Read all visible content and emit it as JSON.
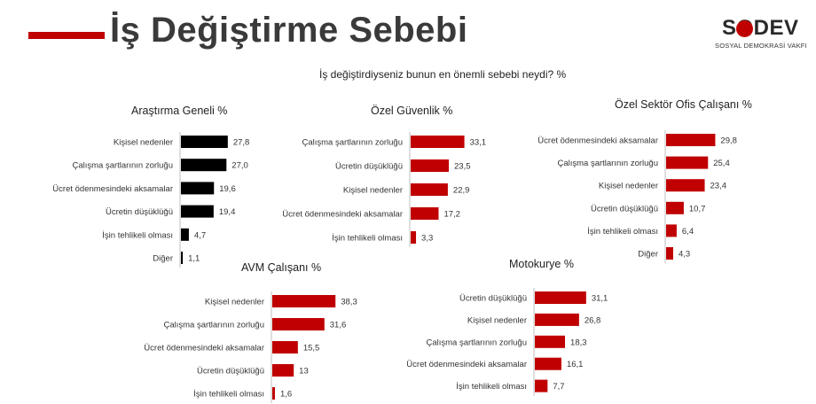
{
  "header": {
    "title": "İş Değiştirme Sebebi",
    "question": "İş değiştirdiyseniz bunun en önemli sebebi neydi?   %",
    "logo_text": "SODEV",
    "logo_subtitle": "SOSYAL DEMOKRASİ VAKFI"
  },
  "colors": {
    "accent": "#c00000",
    "general_bar": "#000000",
    "segment_bar": "#c00000"
  },
  "chart_data": [
    {
      "type": "bar",
      "title": "Araştırma Geneli %",
      "categories": [
        "Kişisel nedenler",
        "Çalışma şartlarının zorluğu",
        "Ücret ödenmesindeki aksamalar",
        "Ücretin düşüklüğü",
        "İşin tehlikeli olması",
        "Diğer"
      ],
      "values": [
        27.8,
        27.0,
        19.6,
        19.4,
        4.7,
        1.1
      ],
      "labels": [
        "27,8",
        "27,0",
        "19,6",
        "19,4",
        "4,7",
        "1,1"
      ],
      "color": "#000000"
    },
    {
      "type": "bar",
      "title": "Özel Güvenlik %",
      "categories": [
        "Çalışma şartlarının zorluğu",
        "Ücretin düşüklüğü",
        "Kişisel nedenler",
        "Ücret ödenmesindeki aksamalar",
        "İşin tehlikeli olması"
      ],
      "values": [
        33.1,
        23.5,
        22.9,
        17.2,
        3.3
      ],
      "labels": [
        "33,1",
        "23,5",
        "22,9",
        "17,2",
        "3,3"
      ],
      "color": "#c00000"
    },
    {
      "type": "bar",
      "title": "Özel Sektör Ofis Çalışanı %",
      "categories": [
        "Ücret ödenmesindeki aksamalar",
        "Çalışma şartlarının zorluğu",
        "Kişisel nedenler",
        "Ücretin düşüklüğü",
        "İşin tehlikeli olması",
        "Diğer"
      ],
      "values": [
        29.8,
        25.4,
        23.4,
        10.7,
        6.4,
        4.3
      ],
      "labels": [
        "29,8",
        "25,4",
        "23,4",
        "10,7",
        "6,4",
        "4,3"
      ],
      "color": "#c00000"
    },
    {
      "type": "bar",
      "title": "AVM Çalışanı %",
      "categories": [
        "Kişisel nedenler",
        "Çalışma şartlarının zorluğu",
        "Ücret ödenmesindeki aksamalar",
        "Ücretin düşüklüğü",
        "İşin tehlikeli olması"
      ],
      "values": [
        38.3,
        31.6,
        15.5,
        13,
        1.6
      ],
      "labels": [
        "38,3",
        "31,6",
        "15,5",
        "13",
        "1,6"
      ],
      "color": "#c00000"
    },
    {
      "type": "bar",
      "title": "Motokurye %",
      "categories": [
        "Ücretin düşüklüğü",
        "Kişisel nedenler",
        "Çalışma şartlarının zorluğu",
        "Ücret ödenmesindeki aksamalar",
        "İşin tehlikeli olması"
      ],
      "values": [
        31.1,
        26.8,
        18.3,
        16.1,
        7.7
      ],
      "labels": [
        "31,1",
        "26,8",
        "18,3",
        "16,1",
        "7,7"
      ],
      "color": "#c00000"
    }
  ]
}
